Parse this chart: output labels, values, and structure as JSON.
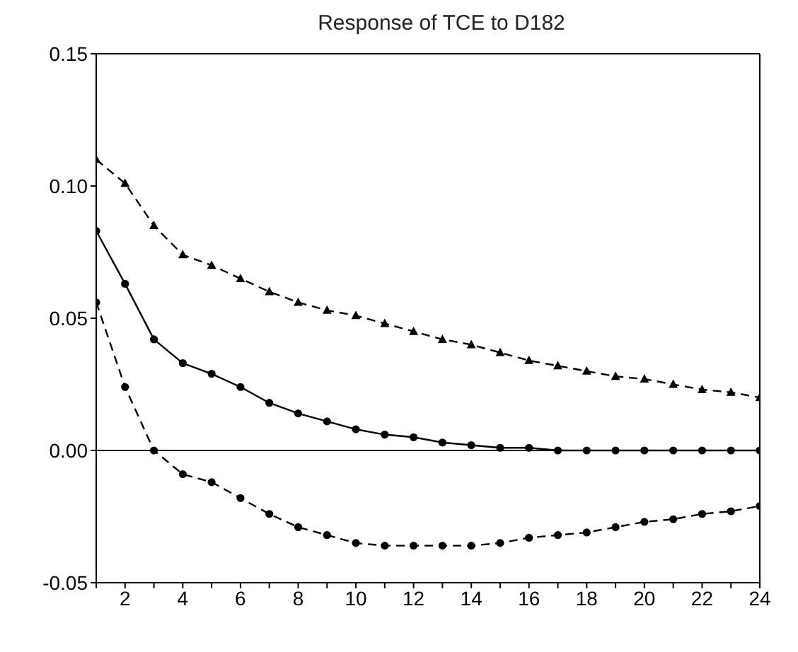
{
  "chart_data": {
    "type": "line",
    "title": "Response of TCE to D182",
    "x": [
      1,
      2,
      3,
      4,
      5,
      6,
      7,
      8,
      9,
      10,
      11,
      12,
      13,
      14,
      15,
      16,
      17,
      18,
      19,
      20,
      21,
      22,
      23,
      24
    ],
    "series": [
      {
        "color": "#000000",
        "line_style": "dashed",
        "marker": "triangle",
        "values": [
          0.11,
          0.101,
          0.085,
          0.074,
          0.07,
          0.065,
          0.06,
          0.056,
          0.053,
          0.051,
          0.048,
          0.045,
          0.042,
          0.04,
          0.037,
          0.034,
          0.032,
          0.03,
          0.028,
          0.027,
          0.025,
          0.023,
          0.022,
          0.02
        ]
      },
      {
        "color": "#000000",
        "line_style": "solid",
        "marker": "circle",
        "values": [
          0.083,
          0.063,
          0.042,
          0.033,
          0.029,
          0.024,
          0.018,
          0.014,
          0.011,
          0.008,
          0.006,
          0.005,
          0.003,
          0.002,
          0.001,
          0.001,
          0.0,
          0.0,
          0.0,
          0.0,
          0.0,
          0.0,
          0.0,
          0.0
        ]
      },
      {
        "color": "#000000",
        "line_style": "dashed",
        "marker": "circle",
        "values": [
          0.056,
          0.024,
          0.0,
          -0.009,
          -0.012,
          -0.018,
          -0.024,
          -0.029,
          -0.032,
          -0.035,
          -0.036,
          -0.036,
          -0.036,
          -0.036,
          -0.035,
          -0.033,
          -0.032,
          -0.031,
          -0.029,
          -0.027,
          -0.026,
          -0.024,
          -0.023,
          -0.021
        ]
      }
    ],
    "xlim": [
      1,
      24
    ],
    "xticks": [
      {
        "value": 1,
        "label": null
      },
      2,
      {
        "value": 3,
        "label": null
      },
      4,
      {
        "value": 5,
        "label": null
      },
      6,
      {
        "value": 7,
        "label": null
      },
      8,
      {
        "value": 9,
        "label": null
      },
      10,
      {
        "value": 11,
        "label": null
      },
      12,
      {
        "value": 13,
        "label": null
      },
      14,
      {
        "value": 15,
        "label": null
      },
      16,
      {
        "value": 17,
        "label": null
      },
      18,
      {
        "value": 19,
        "label": null
      },
      20,
      {
        "value": 21,
        "label": null
      },
      22,
      {
        "value": 23,
        "label": null
      },
      24
    ],
    "ylim": [
      -0.05,
      0.15
    ],
    "yticks": [
      {
        "value": -0.05,
        "label": "-0.05"
      },
      {
        "value": 0,
        "label": "0.00"
      },
      {
        "value": 0.05,
        "label": "0.05"
      },
      {
        "value": 0.1,
        "label": "0.10"
      },
      {
        "value": 0.15,
        "label": "0.15"
      }
    ],
    "ref_lines": [
      {
        "axis": "y",
        "value": 0,
        "color": "#000000",
        "line_style": "solid"
      }
    ],
    "grid": false,
    "legend": false
  }
}
